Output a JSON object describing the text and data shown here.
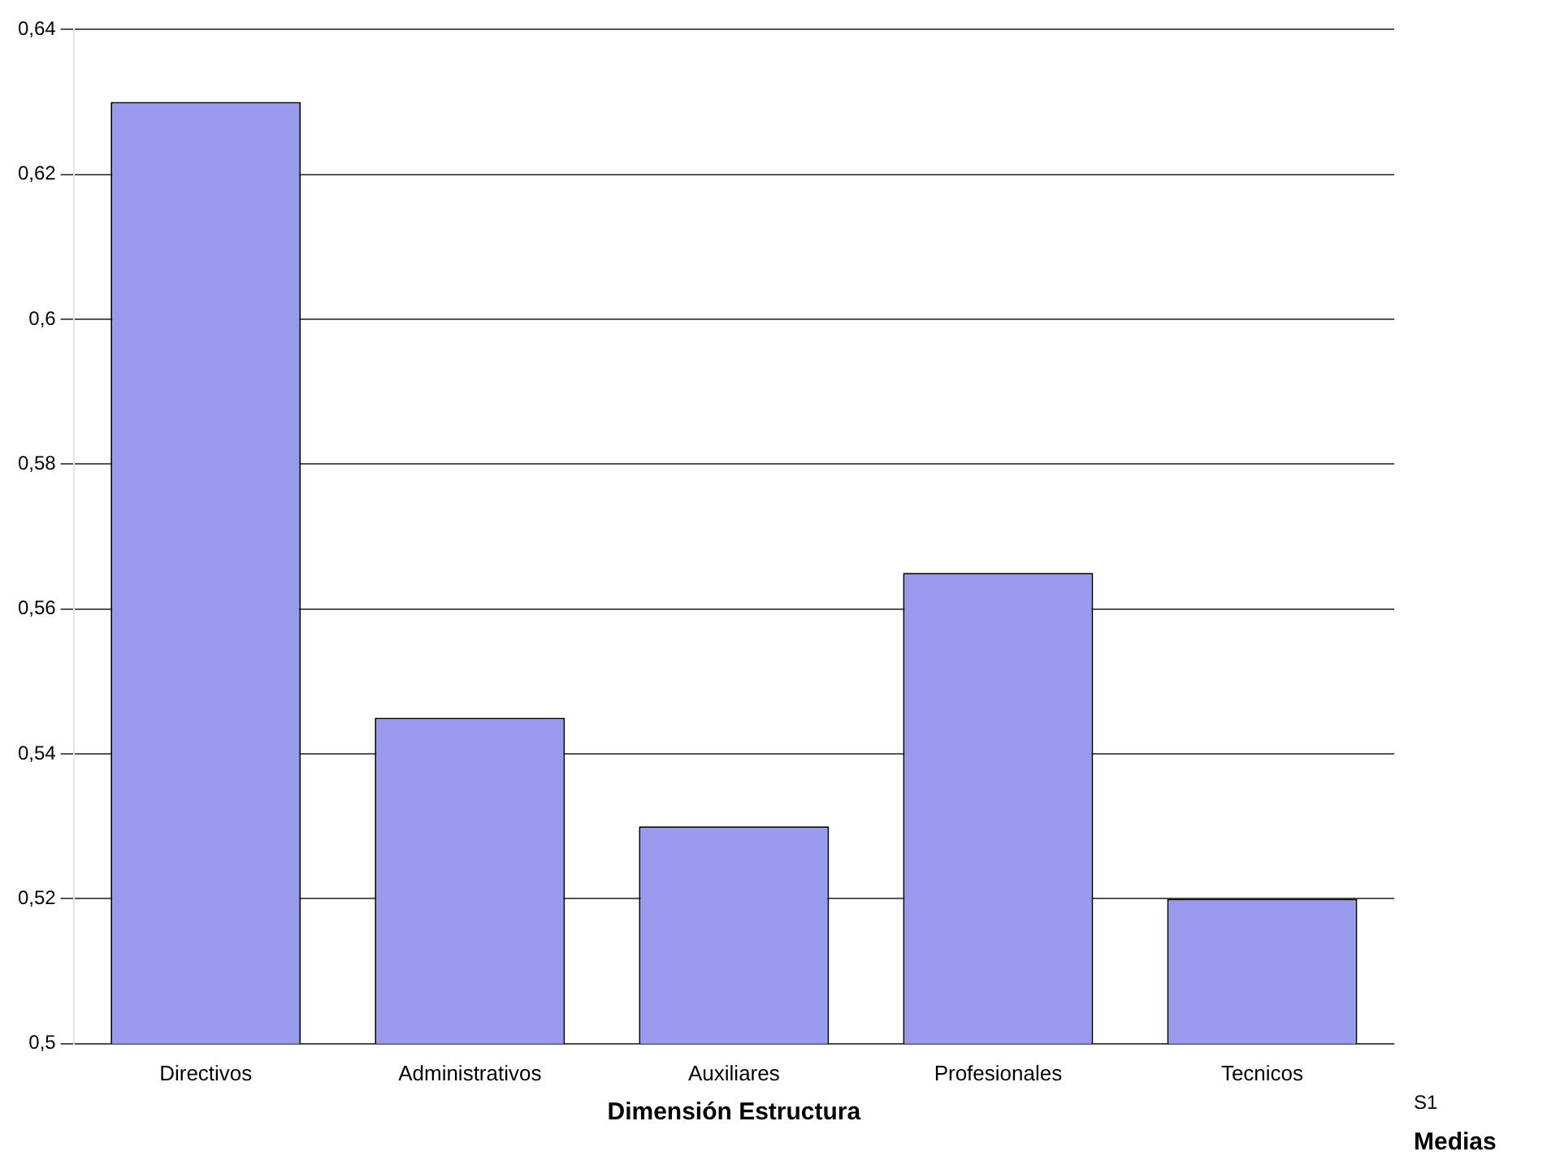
{
  "chart_data": {
    "type": "bar",
    "xlabel": "Dimensión Estructura",
    "categories": [
      "Directivos",
      "Administrativos",
      "Auxiliares",
      "Profesionales",
      "Tecnicos"
    ],
    "series": [
      {
        "name": "S1",
        "color": "#9999ee",
        "values": [
          0.63,
          0.545,
          0.53,
          0.565,
          0.52
        ]
      }
    ],
    "ylim": [
      0.5,
      0.64
    ],
    "yticks": [
      {
        "value": 0.5,
        "label": "0,5"
      },
      {
        "value": 0.52,
        "label": "0,52"
      },
      {
        "value": 0.54,
        "label": "0,54"
      },
      {
        "value": 0.56,
        "label": "0,56"
      },
      {
        "value": 0.58,
        "label": "0,58"
      },
      {
        "value": 0.6,
        "label": "0,6"
      },
      {
        "value": 0.62,
        "label": "0,62"
      },
      {
        "value": 0.64,
        "label": "0,64"
      }
    ],
    "grid": "y",
    "legend": false,
    "annotations": [
      "Medias"
    ]
  }
}
